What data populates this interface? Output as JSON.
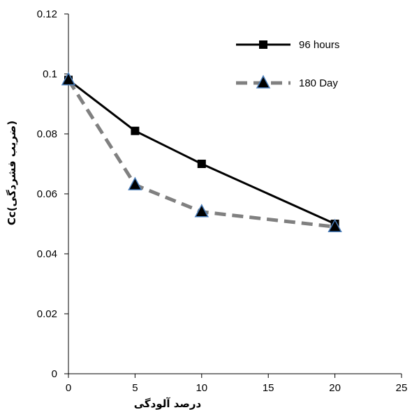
{
  "chart_data": {
    "type": "line",
    "xlabel": "درصد آلودگی",
    "ylabel": "Cc(ضریب فشردگی)",
    "xlim": [
      0,
      25
    ],
    "ylim": [
      0,
      0.12
    ],
    "x_ticks": [
      "0",
      "5",
      "10",
      "15",
      "20",
      "25"
    ],
    "y_ticks": [
      "0",
      "0.02",
      "0.04",
      "0.06",
      "0.08",
      "0.1",
      "0.12"
    ],
    "grid": false,
    "legend_position": "top-right",
    "series": [
      {
        "name": "96 hours",
        "x": [
          0,
          5,
          10,
          20
        ],
        "y": [
          0.098,
          0.081,
          0.07,
          0.05
        ],
        "color": "#000000",
        "line_style": "solid",
        "marker": "square"
      },
      {
        "name": "180 Day",
        "x": [
          0,
          5,
          10,
          20
        ],
        "y": [
          0.098,
          0.063,
          0.054,
          0.049
        ],
        "color": "#808080",
        "marker_fill": "#000000",
        "marker_stroke": "#4a7ebb",
        "line_style": "dashed",
        "marker": "triangle"
      }
    ]
  }
}
